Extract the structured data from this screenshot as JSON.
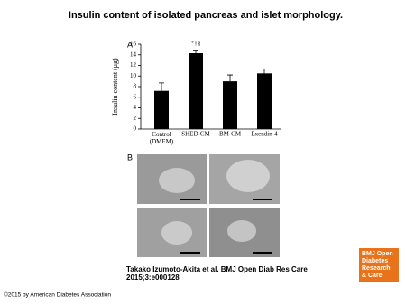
{
  "title": "Insulin content of isolated pancreas and islet morphology.",
  "panels": {
    "a": "A",
    "b": "B"
  },
  "citation": [
    "Takako Izumoto-Akita et al. BMJ Open Diab Res Care",
    "2015;3:e000128"
  ],
  "logo": [
    "BMJ Open",
    "Diabetes",
    "Research",
    "& Care"
  ],
  "copyright": "©2015 by American Diabetes Association",
  "chart_data": {
    "type": "bar",
    "ylabel": "Insulin content (μg)",
    "categories": [
      "Control (DMEM)",
      "SHED-CM",
      "BM-CM",
      "Exendin-4"
    ],
    "values": [
      7.2,
      14.3,
      9.0,
      10.5
    ],
    "errors": [
      1.5,
      0.6,
      1.2,
      0.8
    ],
    "value_labels": [
      null,
      "*†§",
      null,
      null
    ],
    "color": "#000000",
    "ylim": [
      0,
      16
    ],
    "yticks": [
      0,
      2,
      4,
      6,
      8,
      10,
      12,
      14,
      16
    ]
  }
}
